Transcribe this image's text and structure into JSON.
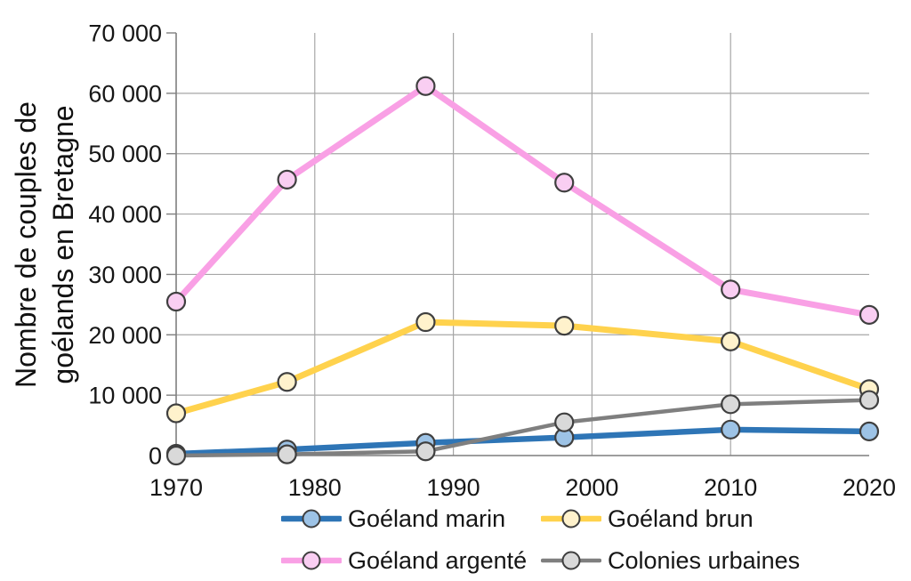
{
  "figure": {
    "background": "#FFFFFF",
    "text_color": "#161616",
    "grid_color": "#A6A6A6",
    "axis_color": "#7F7F7F",
    "marker_border_color": "#3F3F3F"
  },
  "chart_data": {
    "type": "line",
    "title": "",
    "xlabel": "",
    "ylabel": "Nombre de couples de goélands en Bretagne",
    "ylabel_lines": [
      "Nombre de couples de",
      "goélands en Bretagne"
    ],
    "x": [
      1970,
      1978,
      1988,
      1998,
      2010,
      2020
    ],
    "xticks": [
      1970,
      1980,
      1990,
      2000,
      2010,
      2020
    ],
    "xtick_labels": [
      "1970",
      "1980",
      "1990",
      "2000",
      "2010",
      "2020"
    ],
    "ylim": [
      0,
      70000
    ],
    "yticks": [
      0,
      10000,
      20000,
      30000,
      40000,
      50000,
      60000,
      70000
    ],
    "ytick_labels": [
      "0",
      "10 000",
      "20 000",
      "30 000",
      "40 000",
      "50 000",
      "60 000",
      "70 000"
    ],
    "grid": true,
    "legend_position": "bottom",
    "series": [
      {
        "name": "Goéland marin",
        "line_color": "#2E75B6",
        "marker_fill": "#9DC3E6",
        "line_width": 6.5,
        "values": [
          300,
          1000,
          2100,
          3000,
          4300,
          4000
        ]
      },
      {
        "name": "Goéland brun",
        "line_color": "#FFD24D",
        "marker_fill": "#FFF2CC",
        "line_width": 7,
        "values": [
          7000,
          12200,
          22100,
          21500,
          18900,
          11000
        ]
      },
      {
        "name": "Goéland argenté",
        "line_color": "#F9A0E5",
        "marker_fill": "#F9CEF2",
        "line_width": 7,
        "values": [
          25500,
          45700,
          61200,
          45200,
          27500,
          23300
        ]
      },
      {
        "name": "Colonies urbaines",
        "line_color": "#7F7F7F",
        "marker_fill": "#D9D9D9",
        "line_width": 4.5,
        "values": [
          0,
          200,
          700,
          5500,
          8500,
          9200
        ]
      }
    ]
  }
}
